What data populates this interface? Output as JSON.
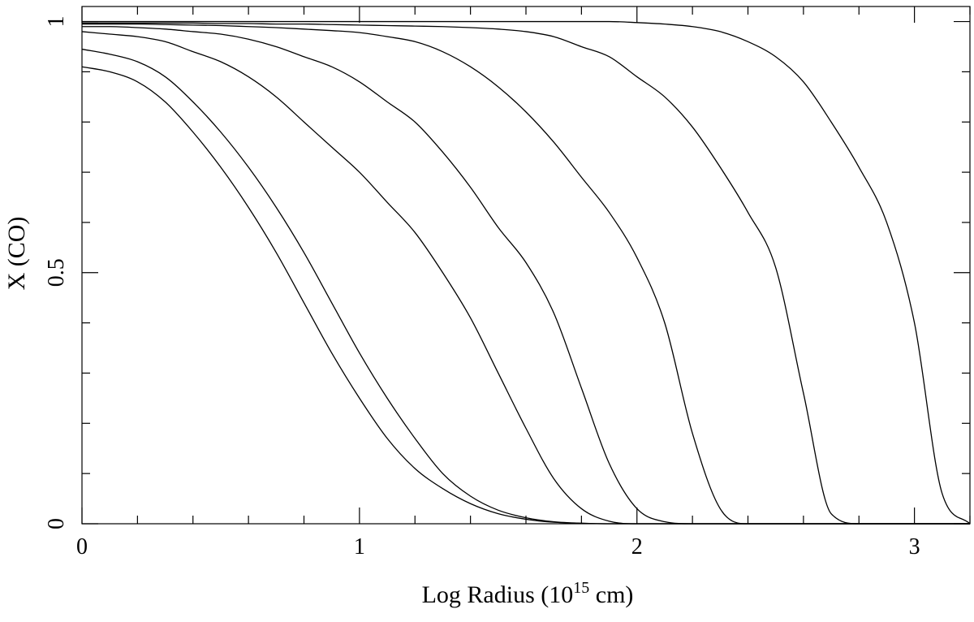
{
  "chart_data": {
    "type": "line",
    "x_label": [
      "Log Radius (10",
      "15",
      " cm)"
    ],
    "y_label": "X (CO)",
    "xlim": [
      0,
      3.2
    ],
    "ylim": [
      0,
      1.03
    ],
    "xticks": [
      0,
      1,
      2,
      3
    ],
    "yticks": [
      0,
      0.5,
      1
    ],
    "xminorticks": [
      0.2,
      0.4,
      0.6,
      0.8,
      1.2,
      1.4,
      1.6,
      1.8,
      2.2,
      2.4,
      2.6,
      2.8,
      3.2
    ],
    "yminorticks": [
      0.1,
      0.2,
      0.3,
      0.4,
      0.6,
      0.7,
      0.8,
      0.9
    ],
    "grid": false,
    "x": [
      0,
      0.1,
      0.2,
      0.3,
      0.4,
      0.5,
      0.6,
      0.7,
      0.8,
      0.9,
      1.0,
      1.1,
      1.2,
      1.3,
      1.4,
      1.5,
      1.6,
      1.7,
      1.8,
      1.9,
      2.0,
      2.1,
      2.2,
      2.3,
      2.4,
      2.5,
      2.6,
      2.7,
      2.8,
      2.9,
      3.0,
      3.1,
      3.2
    ],
    "series": [
      {
        "color": "#000000",
        "values": [
          0.91,
          0.9,
          0.88,
          0.84,
          0.78,
          0.71,
          0.63,
          0.54,
          0.44,
          0.34,
          0.25,
          0.17,
          0.11,
          0.07,
          0.04,
          0.02,
          0.009,
          0.003,
          0.001,
          0,
          0,
          0,
          0,
          0,
          0,
          0,
          0,
          0,
          0,
          0,
          0,
          0,
          0
        ]
      },
      {
        "color": "#000000",
        "values": [
          0.945,
          0.935,
          0.92,
          0.89,
          0.84,
          0.78,
          0.71,
          0.63,
          0.54,
          0.44,
          0.34,
          0.25,
          0.17,
          0.1,
          0.055,
          0.027,
          0.012,
          0.004,
          0.001,
          0,
          0,
          0,
          0,
          0,
          0,
          0,
          0,
          0,
          0,
          0,
          0,
          0,
          0
        ]
      },
      {
        "color": "#000000",
        "values": [
          0.98,
          0.975,
          0.97,
          0.96,
          0.94,
          0.92,
          0.89,
          0.85,
          0.8,
          0.75,
          0.7,
          0.64,
          0.58,
          0.5,
          0.41,
          0.3,
          0.19,
          0.09,
          0.03,
          0.005,
          0,
          0,
          0,
          0,
          0,
          0,
          0,
          0,
          0,
          0,
          0,
          0,
          0
        ]
      },
      {
        "color": "#000000",
        "values": [
          0.99,
          0.99,
          0.988,
          0.985,
          0.98,
          0.975,
          0.965,
          0.95,
          0.93,
          0.91,
          0.88,
          0.84,
          0.8,
          0.74,
          0.67,
          0.59,
          0.52,
          0.42,
          0.27,
          0.12,
          0.03,
          0.004,
          0,
          0,
          0,
          0,
          0,
          0,
          0,
          0,
          0,
          0,
          0
        ]
      },
      {
        "color": "#000000",
        "values": [
          0.995,
          0.995,
          0.995,
          0.994,
          0.993,
          0.992,
          0.99,
          0.988,
          0.985,
          0.982,
          0.978,
          0.97,
          0.96,
          0.94,
          0.91,
          0.87,
          0.82,
          0.76,
          0.69,
          0.62,
          0.53,
          0.4,
          0.18,
          0.03,
          0,
          0,
          0,
          0,
          0,
          0,
          0,
          0,
          0
        ]
      },
      {
        "color": "#000000",
        "values": [
          0.997,
          0.997,
          0.997,
          0.997,
          0.997,
          0.996,
          0.996,
          0.995,
          0.995,
          0.994,
          0.993,
          0.992,
          0.991,
          0.99,
          0.988,
          0.985,
          0.98,
          0.97,
          0.95,
          0.93,
          0.89,
          0.85,
          0.79,
          0.71,
          0.62,
          0.51,
          0.26,
          0.02,
          0,
          0,
          0,
          0,
          0
        ]
      },
      {
        "color": "#000000",
        "values": [
          1,
          1,
          1,
          1,
          1,
          1,
          1,
          1,
          1,
          1,
          1,
          1,
          1,
          1,
          1,
          1,
          1,
          1,
          1,
          1,
          0.998,
          0.995,
          0.99,
          0.98,
          0.96,
          0.93,
          0.88,
          0.8,
          0.71,
          0.6,
          0.4,
          0.06,
          0
        ]
      }
    ]
  }
}
